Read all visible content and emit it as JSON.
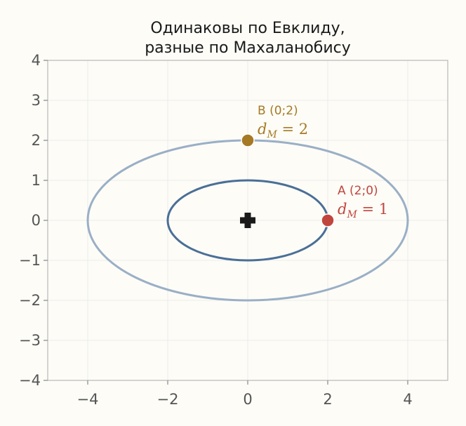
{
  "chart_data": {
    "type": "scatter",
    "title_lines": [
      "Одинаковы по Евклиду,",
      "разные по Махаланобису"
    ],
    "xlabel": "",
    "ylabel": "",
    "xlim": [
      -5,
      5
    ],
    "ylim": [
      -4,
      4
    ],
    "xticks": [
      -4,
      -2,
      0,
      2,
      4
    ],
    "yticks": [
      -4,
      -3,
      -2,
      -1,
      0,
      1,
      2,
      3,
      4
    ],
    "grid": true,
    "colors": {
      "background": "#fdfcf7",
      "grid": "#ebebeb",
      "frame": "#bdbdbd",
      "inner_ellipse": "#4a6f96",
      "outer_ellipse": "#9aafc6",
      "point_a": "#c0463d",
      "point_b": "#a67a24",
      "center": "#1a1a1a"
    },
    "ellipses": [
      {
        "center": [
          0,
          0
        ],
        "semi_x": 2,
        "semi_y": 1,
        "role": "inner"
      },
      {
        "center": [
          0,
          0
        ],
        "semi_x": 4,
        "semi_y": 2,
        "role": "outer"
      }
    ],
    "center_marker": {
      "x": 0,
      "y": 0,
      "shape": "plus"
    },
    "points": [
      {
        "id": "A",
        "x": 2,
        "y": 0,
        "label": "A (2;0)",
        "math_var": "d",
        "math_sub": "M",
        "math_rest": " = 1",
        "color": "#c0463d"
      },
      {
        "id": "B",
        "x": 0,
        "y": 2,
        "label": "B (0;2)",
        "math_var": "d",
        "math_sub": "M",
        "math_rest": " = 2",
        "color": "#a67a24"
      }
    ]
  }
}
